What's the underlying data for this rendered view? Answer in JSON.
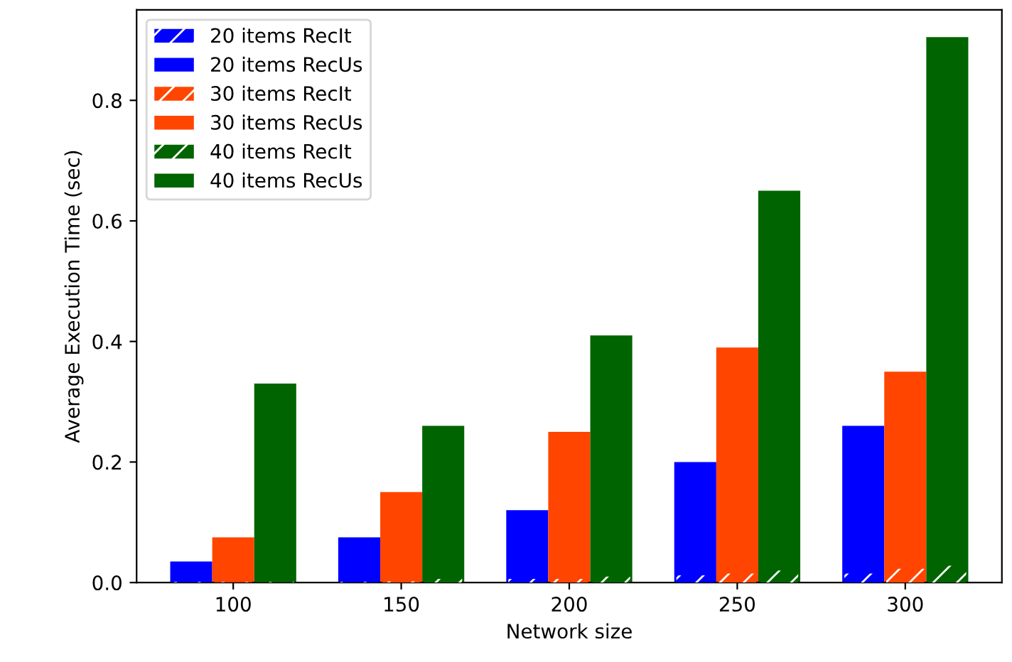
{
  "chart_data": {
    "type": "bar",
    "xlabel": "Network size",
    "ylabel": "Average Execution Time (sec)",
    "categories": [
      "100",
      "150",
      "200",
      "250",
      "300"
    ],
    "series": [
      {
        "name": "20 items RecIt",
        "color": "#0000ff",
        "values": [
          0.001,
          0.001,
          0.006,
          0.012,
          0.015
        ]
      },
      {
        "name": "20 items RecUs",
        "color": "#0000ff",
        "values": [
          0.035,
          0.075,
          0.12,
          0.2,
          0.26
        ]
      },
      {
        "name": "30 items RecIt",
        "color": "#ff4500",
        "values": [
          0.001,
          0.002,
          0.006,
          0.015,
          0.023
        ]
      },
      {
        "name": "30 items RecUs",
        "color": "#ff4500",
        "values": [
          0.075,
          0.15,
          0.25,
          0.39,
          0.35
        ]
      },
      {
        "name": "40 items RecIt",
        "color": "#006400",
        "values": [
          0.001,
          0.006,
          0.01,
          0.02,
          0.028
        ]
      },
      {
        "name": "40 items RecUs",
        "color": "#006400",
        "values": [
          0.33,
          0.26,
          0.41,
          0.65,
          0.905
        ]
      }
    ],
    "ylim": [
      0,
      0.95
    ],
    "yticks": [
      {
        "value": 0,
        "label": "0.0"
      },
      0.2,
      0.4,
      0.6,
      0.8
    ],
    "legend": "top left",
    "grid": false
  }
}
